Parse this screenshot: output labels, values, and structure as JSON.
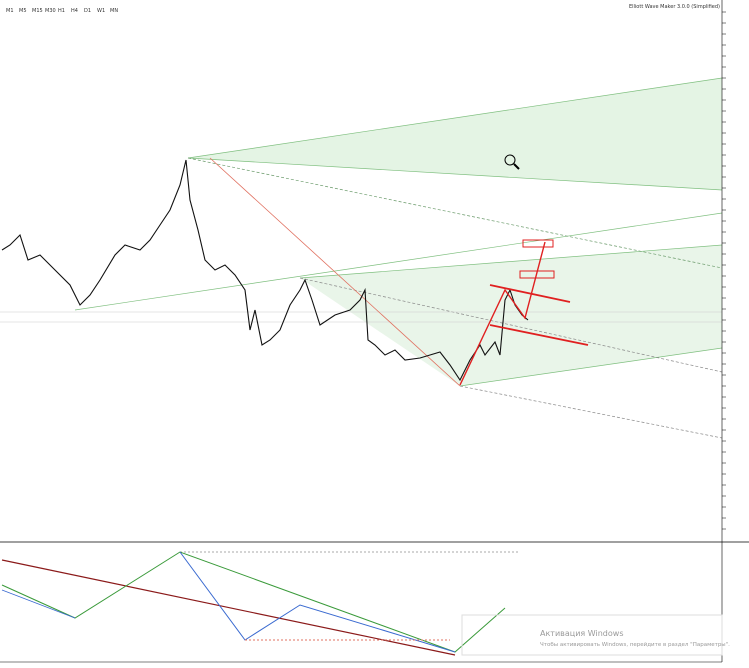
{
  "toolbar": {
    "timeframes": [
      "M1",
      "M5",
      "M15",
      "M30",
      "H1",
      "H4",
      "D1",
      "W1",
      "MN"
    ]
  },
  "indicator": {
    "title": "Elliott Wave Maker 3.0.0 (Simplified)"
  },
  "watermark": {
    "title": "Активация Windows",
    "text": "Чтобы активировать Windows, перейдите в раздел \"Параметры\"."
  }
}
